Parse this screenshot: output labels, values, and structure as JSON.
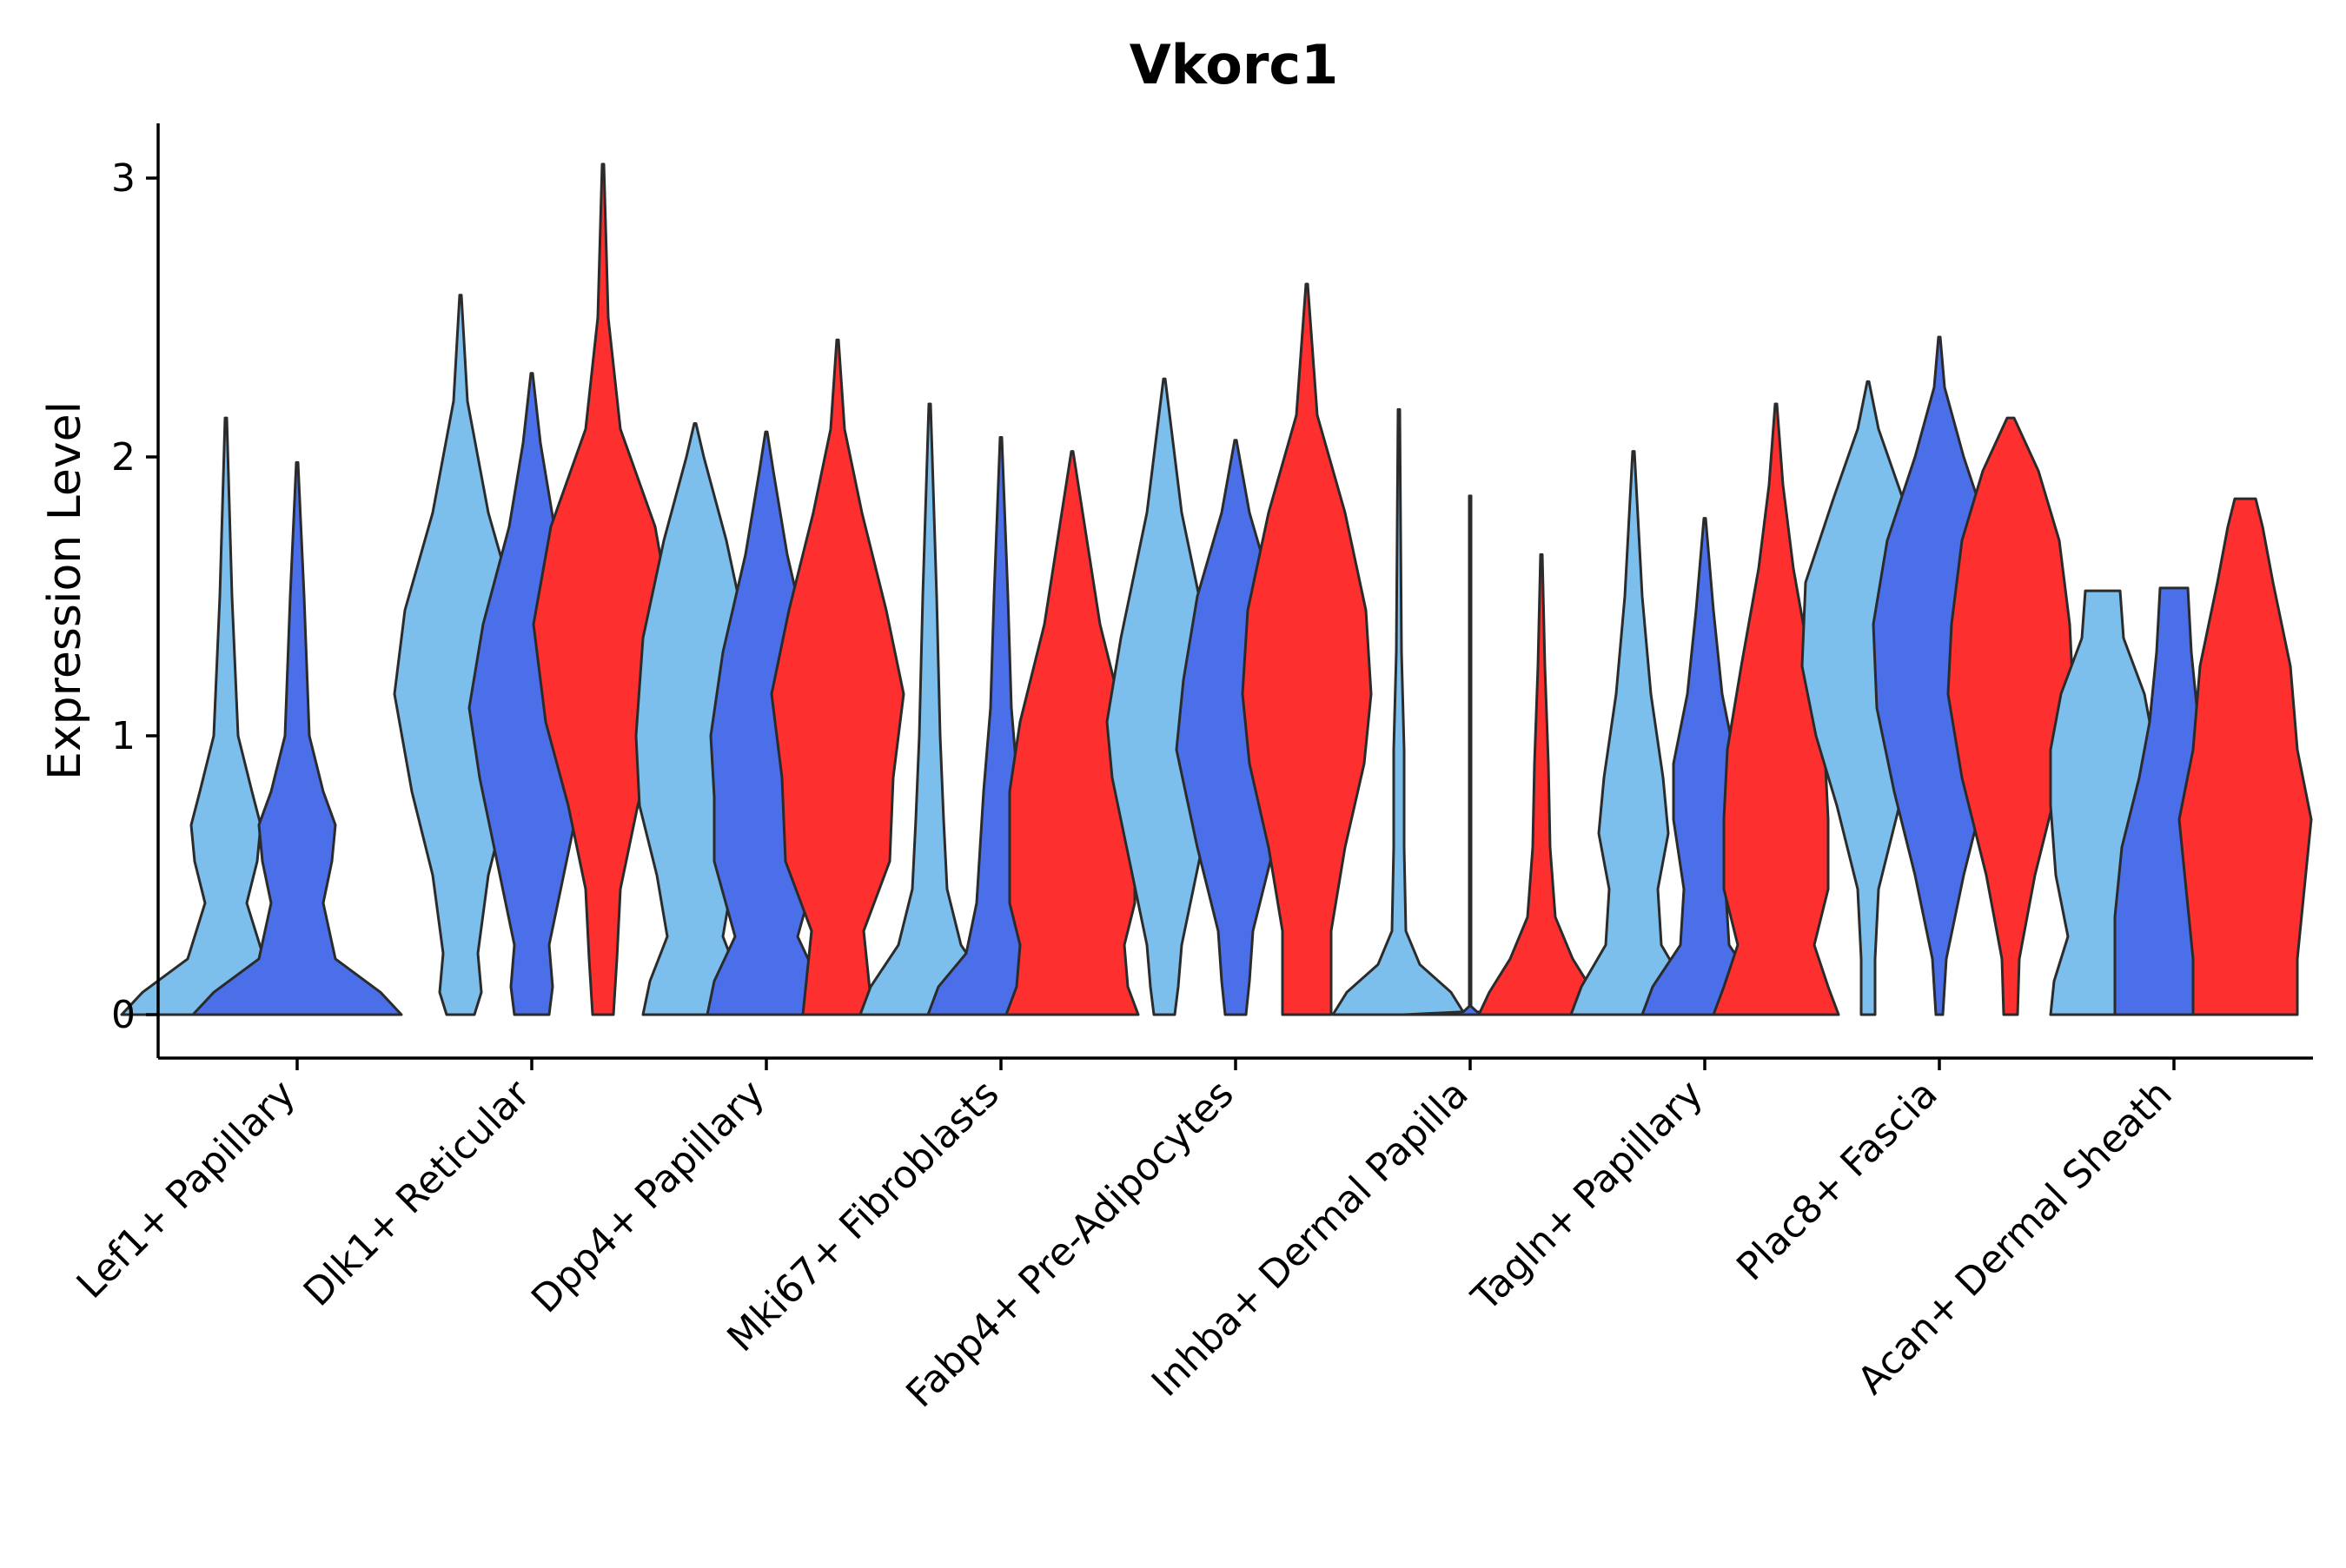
{
  "chart_data": {
    "type": "violin",
    "title": "Vkorc1",
    "xlabel": "",
    "ylabel": "Expression Level",
    "ylim": [
      -0.15,
      3.2
    ],
    "yticks": [
      0,
      1,
      2,
      3
    ],
    "grid": false,
    "legend": "none",
    "colors": {
      "light_blue": "#7dbfec",
      "blue": "#4a6fe8",
      "red": "#fd2f2f",
      "outline": "#2b2b2b"
    },
    "categories": [
      "Lef1+ Papillary",
      "Dlk1+ Reticular",
      "Dpp4+ Papillary",
      "Mki67+ Fibroblasts",
      "Fabp4+ Pre-Adipocytes",
      "Inhba+ Dermal Papilla",
      "Tagln+ Papillary",
      "Plac8+ Fascia",
      "Acan+ Dermal Sheath"
    ],
    "violins": [
      {
        "category": "Lef1+ Papillary",
        "color": "light_blue",
        "profile": [
          [
            0,
            0.6
          ],
          [
            0.08,
            0.48
          ],
          [
            0.2,
            0.22
          ],
          [
            0.4,
            0.12
          ],
          [
            0.55,
            0.18
          ],
          [
            0.68,
            0.2
          ],
          [
            0.8,
            0.15
          ],
          [
            1.0,
            0.07
          ],
          [
            1.5,
            0.035
          ],
          [
            2.14,
            0.005
          ]
        ]
      },
      {
        "category": "Lef1+ Papillary",
        "color": "blue",
        "profile": [
          [
            0,
            0.6
          ],
          [
            0.08,
            0.48
          ],
          [
            0.2,
            0.22
          ],
          [
            0.4,
            0.15
          ],
          [
            0.55,
            0.2
          ],
          [
            0.68,
            0.22
          ],
          [
            0.8,
            0.15
          ],
          [
            1.0,
            0.07
          ],
          [
            1.5,
            0.04
          ],
          [
            1.98,
            0.005
          ]
        ]
      },
      {
        "category": "Dlk1+ Reticular",
        "color": "light_blue",
        "profile": [
          [
            0,
            0.08
          ],
          [
            0.08,
            0.12
          ],
          [
            0.22,
            0.1
          ],
          [
            0.5,
            0.16
          ],
          [
            0.8,
            0.28
          ],
          [
            1.15,
            0.38
          ],
          [
            1.45,
            0.32
          ],
          [
            1.8,
            0.16
          ],
          [
            2.2,
            0.04
          ],
          [
            2.58,
            0.005
          ]
        ]
      },
      {
        "category": "Dlk1+ Reticular",
        "color": "blue",
        "profile": [
          [
            0,
            0.1
          ],
          [
            0.1,
            0.12
          ],
          [
            0.25,
            0.1
          ],
          [
            0.55,
            0.2
          ],
          [
            0.85,
            0.3
          ],
          [
            1.1,
            0.36
          ],
          [
            1.4,
            0.28
          ],
          [
            1.75,
            0.13
          ],
          [
            2.05,
            0.05
          ],
          [
            2.3,
            0.005
          ]
        ]
      },
      {
        "category": "Dlk1+ Reticular",
        "color": "red",
        "profile": [
          [
            0,
            0.06
          ],
          [
            0.2,
            0.08
          ],
          [
            0.45,
            0.1
          ],
          [
            0.75,
            0.2
          ],
          [
            1.05,
            0.33
          ],
          [
            1.4,
            0.4
          ],
          [
            1.75,
            0.3
          ],
          [
            2.1,
            0.1
          ],
          [
            2.5,
            0.03
          ],
          [
            3.05,
            0.005
          ]
        ]
      },
      {
        "category": "Dpp4+ Papillary",
        "color": "light_blue",
        "profile": [
          [
            0,
            0.3
          ],
          [
            0.12,
            0.26
          ],
          [
            0.28,
            0.16
          ],
          [
            0.5,
            0.22
          ],
          [
            0.75,
            0.32
          ],
          [
            1.0,
            0.34
          ],
          [
            1.35,
            0.3
          ],
          [
            1.7,
            0.18
          ],
          [
            2.0,
            0.05
          ],
          [
            2.12,
            0.005
          ]
        ]
      },
      {
        "category": "Dpp4+ Papillary",
        "color": "blue",
        "profile": [
          [
            0,
            0.34
          ],
          [
            0.12,
            0.3
          ],
          [
            0.28,
            0.18
          ],
          [
            0.55,
            0.3
          ],
          [
            0.78,
            0.3
          ],
          [
            1.0,
            0.32
          ],
          [
            1.3,
            0.25
          ],
          [
            1.65,
            0.12
          ],
          [
            1.95,
            0.04
          ],
          [
            2.09,
            0.005
          ]
        ]
      },
      {
        "category": "Dpp4+ Papillary",
        "color": "red",
        "profile": [
          [
            0,
            0.2
          ],
          [
            0.12,
            0.18
          ],
          [
            0.3,
            0.15
          ],
          [
            0.55,
            0.3
          ],
          [
            0.85,
            0.32
          ],
          [
            1.15,
            0.38
          ],
          [
            1.45,
            0.28
          ],
          [
            1.8,
            0.14
          ],
          [
            2.1,
            0.04
          ],
          [
            2.42,
            0.005
          ]
        ]
      },
      {
        "category": "Mki67+ Fibroblasts",
        "color": "light_blue",
        "profile": [
          [
            0,
            0.4
          ],
          [
            0.1,
            0.34
          ],
          [
            0.25,
            0.18
          ],
          [
            0.45,
            0.1
          ],
          [
            0.7,
            0.08
          ],
          [
            1.0,
            0.06
          ],
          [
            1.5,
            0.04
          ],
          [
            2.19,
            0.005
          ]
        ]
      },
      {
        "category": "Mki67+ Fibroblasts",
        "color": "blue",
        "profile": [
          [
            0,
            0.42
          ],
          [
            0.1,
            0.36
          ],
          [
            0.22,
            0.2
          ],
          [
            0.4,
            0.14
          ],
          [
            0.6,
            0.12
          ],
          [
            0.8,
            0.1
          ],
          [
            1.1,
            0.06
          ],
          [
            1.5,
            0.04
          ],
          [
            2.07,
            0.005
          ]
        ]
      },
      {
        "category": "Mki67+ Fibroblasts",
        "color": "red",
        "profile": [
          [
            0,
            0.38
          ],
          [
            0.1,
            0.32
          ],
          [
            0.25,
            0.3
          ],
          [
            0.4,
            0.36
          ],
          [
            0.6,
            0.36
          ],
          [
            0.8,
            0.36
          ],
          [
            1.05,
            0.3
          ],
          [
            1.4,
            0.16
          ],
          [
            1.8,
            0.06
          ],
          [
            2.02,
            0.005
          ]
        ]
      },
      {
        "category": "Fabp4+ Pre-Adipocytes",
        "color": "light_blue",
        "profile": [
          [
            0,
            0.06
          ],
          [
            0.1,
            0.08
          ],
          [
            0.25,
            0.1
          ],
          [
            0.55,
            0.2
          ],
          [
            0.85,
            0.3
          ],
          [
            1.05,
            0.33
          ],
          [
            1.35,
            0.25
          ],
          [
            1.8,
            0.1
          ],
          [
            2.28,
            0.005
          ]
        ]
      },
      {
        "category": "Fabp4+ Pre-Adipocytes",
        "color": "blue",
        "profile": [
          [
            0,
            0.06
          ],
          [
            0.12,
            0.08
          ],
          [
            0.3,
            0.1
          ],
          [
            0.6,
            0.22
          ],
          [
            0.95,
            0.34
          ],
          [
            1.2,
            0.3
          ],
          [
            1.5,
            0.22
          ],
          [
            1.8,
            0.08
          ],
          [
            2.06,
            0.005
          ]
        ]
      },
      {
        "category": "Fabp4+ Pre-Adipocytes",
        "color": "red",
        "profile": [
          [
            0,
            0.14
          ],
          [
            0.3,
            0.14
          ],
          [
            0.6,
            0.22
          ],
          [
            0.9,
            0.33
          ],
          [
            1.15,
            0.37
          ],
          [
            1.45,
            0.34
          ],
          [
            1.8,
            0.22
          ],
          [
            2.15,
            0.06
          ],
          [
            2.62,
            0.005
          ]
        ]
      },
      {
        "category": "Inhba+ Dermal Papilla",
        "color": "light_blue",
        "profile": [
          [
            0,
            0.38
          ],
          [
            0.08,
            0.3
          ],
          [
            0.18,
            0.12
          ],
          [
            0.3,
            0.04
          ],
          [
            0.6,
            0.03
          ],
          [
            0.95,
            0.03
          ],
          [
            1.3,
            0.015
          ],
          [
            2.17,
            0.005
          ]
        ]
      },
      {
        "category": "Inhba+ Dermal Papilla",
        "color": "blue",
        "profile": [
          [
            0,
            0.38
          ],
          [
            0.01,
            0.04
          ],
          [
            0.03,
            0.005
          ],
          [
            1.86,
            0.005
          ]
        ]
      },
      {
        "category": "Inhba+ Dermal Papilla",
        "color": "red",
        "profile": [
          [
            0,
            0.36
          ],
          [
            0.08,
            0.3
          ],
          [
            0.2,
            0.18
          ],
          [
            0.35,
            0.08
          ],
          [
            0.6,
            0.05
          ],
          [
            0.9,
            0.04
          ],
          [
            1.25,
            0.02
          ],
          [
            1.65,
            0.005
          ]
        ]
      },
      {
        "category": "Tagln+ Papillary",
        "color": "light_blue",
        "profile": [
          [
            0,
            0.36
          ],
          [
            0.1,
            0.3
          ],
          [
            0.25,
            0.16
          ],
          [
            0.45,
            0.14
          ],
          [
            0.65,
            0.2
          ],
          [
            0.85,
            0.17
          ],
          [
            1.15,
            0.1
          ],
          [
            1.5,
            0.05
          ],
          [
            2.02,
            0.005
          ]
        ]
      },
      {
        "category": "Tagln+ Papillary",
        "color": "blue",
        "profile": [
          [
            0,
            0.36
          ],
          [
            0.1,
            0.3
          ],
          [
            0.25,
            0.14
          ],
          [
            0.45,
            0.12
          ],
          [
            0.7,
            0.18
          ],
          [
            0.9,
            0.18
          ],
          [
            1.15,
            0.1
          ],
          [
            1.45,
            0.05
          ],
          [
            1.78,
            0.005
          ]
        ]
      },
      {
        "category": "Tagln+ Papillary",
        "color": "red",
        "profile": [
          [
            0,
            0.36
          ],
          [
            0.1,
            0.3
          ],
          [
            0.25,
            0.22
          ],
          [
            0.45,
            0.3
          ],
          [
            0.7,
            0.3
          ],
          [
            0.95,
            0.28
          ],
          [
            1.25,
            0.2
          ],
          [
            1.6,
            0.1
          ],
          [
            1.9,
            0.04
          ],
          [
            2.19,
            0.005
          ]
        ]
      },
      {
        "category": "Plac8+ Fascia",
        "color": "light_blue",
        "profile": [
          [
            0,
            0.04
          ],
          [
            0.2,
            0.04
          ],
          [
            0.45,
            0.06
          ],
          [
            0.75,
            0.18
          ],
          [
            1.0,
            0.3
          ],
          [
            1.25,
            0.38
          ],
          [
            1.55,
            0.36
          ],
          [
            1.85,
            0.2
          ],
          [
            2.1,
            0.06
          ],
          [
            2.27,
            0.005
          ]
        ]
      },
      {
        "category": "Plac8+ Fascia",
        "color": "blue",
        "profile": [
          [
            0,
            0.02
          ],
          [
            0.2,
            0.04
          ],
          [
            0.5,
            0.14
          ],
          [
            0.8,
            0.26
          ],
          [
            1.1,
            0.36
          ],
          [
            1.4,
            0.38
          ],
          [
            1.7,
            0.3
          ],
          [
            2.0,
            0.14
          ],
          [
            2.25,
            0.03
          ],
          [
            2.43,
            0.005
          ]
        ]
      },
      {
        "category": "Plac8+ Fascia",
        "color": "red",
        "profile": [
          [
            0,
            0.04
          ],
          [
            0.2,
            0.05
          ],
          [
            0.5,
            0.14
          ],
          [
            0.85,
            0.28
          ],
          [
            1.15,
            0.36
          ],
          [
            1.4,
            0.34
          ],
          [
            1.7,
            0.28
          ],
          [
            1.95,
            0.16
          ],
          [
            2.14,
            0.02
          ]
        ]
      },
      {
        "category": "Acan+ Dermal Sheath",
        "color": "light_blue",
        "profile": [
          [
            0,
            0.3
          ],
          [
            0.12,
            0.28
          ],
          [
            0.28,
            0.2
          ],
          [
            0.5,
            0.27
          ],
          [
            0.75,
            0.3
          ],
          [
            0.95,
            0.3
          ],
          [
            1.15,
            0.24
          ],
          [
            1.35,
            0.12
          ],
          [
            1.52,
            0.1
          ]
        ]
      },
      {
        "category": "Acan+ Dermal Sheath",
        "color": "blue",
        "profile": [
          [
            0,
            0.34
          ],
          [
            0.15,
            0.34
          ],
          [
            0.35,
            0.34
          ],
          [
            0.6,
            0.3
          ],
          [
            0.85,
            0.2
          ],
          [
            1.05,
            0.14
          ],
          [
            1.3,
            0.1
          ],
          [
            1.53,
            0.08
          ]
        ]
      },
      {
        "category": "Acan+ Dermal Sheath",
        "color": "red",
        "profile": [
          [
            0,
            0.3
          ],
          [
            0.2,
            0.3
          ],
          [
            0.45,
            0.34
          ],
          [
            0.7,
            0.38
          ],
          [
            0.95,
            0.3
          ],
          [
            1.25,
            0.26
          ],
          [
            1.55,
            0.16
          ],
          [
            1.75,
            0.1
          ],
          [
            1.85,
            0.06
          ]
        ]
      }
    ]
  }
}
